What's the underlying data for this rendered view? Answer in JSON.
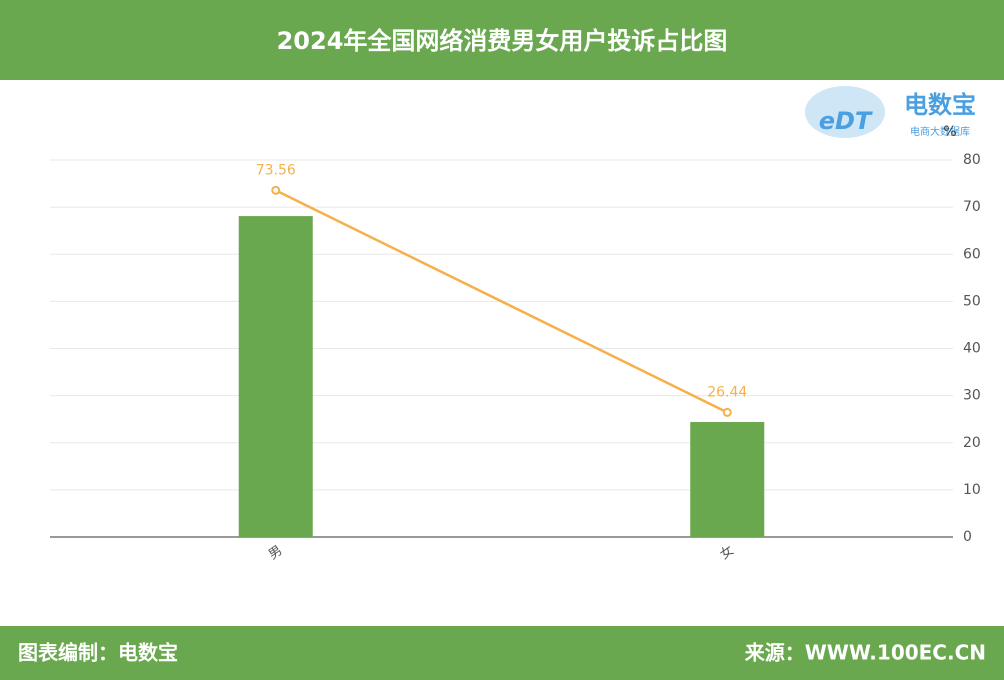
{
  "header": {
    "title": "2024年全国网络消费男女用户投诉占比图"
  },
  "logo": {
    "mark": "eDT",
    "name": "电数宝",
    "tagline": "电商大数据库"
  },
  "chart_data": {
    "type": "bar",
    "unit": "%",
    "categories": [
      "男",
      "女"
    ],
    "series": [
      {
        "type": "bar",
        "color": "#6aa84f",
        "values": [
          68.1,
          24.4
        ]
      },
      {
        "type": "line",
        "color": "#f6b04a",
        "values": [
          73.56,
          26.44
        ]
      }
    ],
    "ylim": [
      0,
      80
    ],
    "yticks": [
      0,
      10,
      20,
      30,
      40,
      50,
      60,
      70,
      80
    ],
    "grid": true,
    "y_axis_side": "right"
  },
  "footer": {
    "left": "图表编制：电数宝",
    "right": "来源：WWW.100EC.CN"
  }
}
